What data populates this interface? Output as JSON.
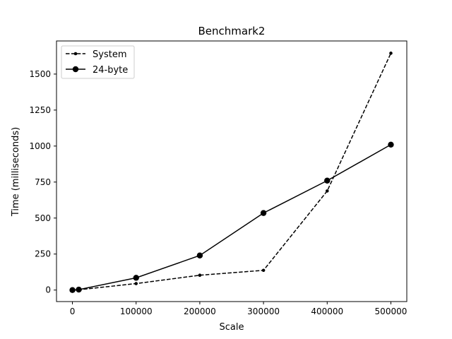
{
  "chart_data": {
    "type": "line",
    "title": "Benchmark2",
    "xlabel": "Scale",
    "ylabel": "Time (milliseconds)",
    "xlim": [
      -25000,
      525000
    ],
    "ylim": [
      -80,
      1730
    ],
    "xticks": [
      0,
      100000,
      200000,
      300000,
      400000,
      500000
    ],
    "yticks": [
      0,
      250,
      500,
      750,
      1000,
      1250,
      1500
    ],
    "grid": false,
    "legend_position": "upper left",
    "series": [
      {
        "name": "System",
        "style": "dashed",
        "marker": "small-dot",
        "color": "#000000",
        "x": [
          0,
          10000,
          100000,
          200000,
          300000,
          400000,
          500000
        ],
        "y": [
          0,
          2,
          45,
          103,
          137,
          688,
          1645
        ]
      },
      {
        "name": "24-byte",
        "style": "solid",
        "marker": "large-dot",
        "color": "#000000",
        "x": [
          0,
          10000,
          100000,
          200000,
          300000,
          400000,
          500000
        ],
        "y": [
          0,
          3,
          85,
          240,
          535,
          760,
          1010
        ]
      }
    ]
  }
}
